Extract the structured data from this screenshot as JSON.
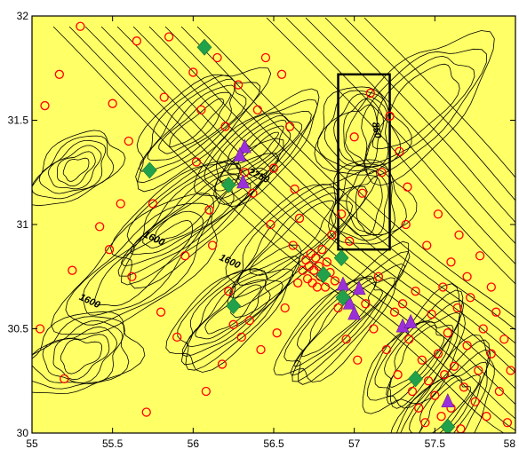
{
  "chart_data": {
    "type": "scatter",
    "xlim": [
      55.0,
      58.0
    ],
    "ylim": [
      30.0,
      32.0
    ],
    "x_ticks": [
      "55",
      "55.5",
      "56",
      "56.5",
      "57",
      "57.5",
      "58"
    ],
    "y_ticks": [
      "30",
      "30.5",
      "31",
      "31.5",
      "32"
    ],
    "contour_labels": [
      {
        "text": "1600",
        "x": 55.75,
        "y": 30.92
      },
      {
        "text": "1600",
        "x": 56.22,
        "y": 30.81
      },
      {
        "text": "1600",
        "x": 55.35,
        "y": 30.62
      },
      {
        "text": "2250",
        "x": 56.4,
        "y": 31.22
      },
      {
        "text": "850",
        "x": 57.12,
        "y": 31.45
      }
    ],
    "study_box": {
      "x0": 56.9,
      "x1": 57.22,
      "y0": 30.88,
      "y1": 31.72
    },
    "series": [
      {
        "marker": "diamond",
        "color": "#22a04a",
        "points": [
          [
            56.07,
            31.85
          ],
          [
            55.73,
            31.26
          ],
          [
            56.22,
            31.19
          ],
          [
            56.25,
            30.61
          ],
          [
            56.81,
            30.76
          ],
          [
            56.92,
            30.84
          ],
          [
            56.93,
            30.65
          ],
          [
            57.38,
            30.26
          ],
          [
            57.58,
            30.03
          ]
        ]
      },
      {
        "marker": "triangle",
        "color": "#9b30d9",
        "points": [
          [
            56.32,
            31.37
          ],
          [
            56.29,
            31.33
          ],
          [
            56.31,
            31.2
          ],
          [
            56.93,
            30.71
          ],
          [
            57.03,
            30.69
          ],
          [
            56.97,
            30.62
          ],
          [
            57.0,
            30.57
          ],
          [
            57.3,
            30.51
          ],
          [
            57.35,
            30.53
          ],
          [
            57.58,
            30.15
          ]
        ]
      },
      {
        "marker": "circle",
        "color": "#ff0000",
        "points": [
          [
            55.05,
            30.5
          ],
          [
            55.08,
            31.57
          ],
          [
            55.17,
            31.72
          ],
          [
            55.2,
            30.26
          ],
          [
            55.25,
            30.78
          ],
          [
            55.3,
            31.95
          ],
          [
            55.42,
            30.99
          ],
          [
            55.48,
            30.88
          ],
          [
            55.5,
            31.58
          ],
          [
            55.55,
            31.1
          ],
          [
            55.6,
            31.4
          ],
          [
            55.62,
            30.75
          ],
          [
            55.65,
            31.88
          ],
          [
            55.71,
            30.1
          ],
          [
            55.75,
            31.1
          ],
          [
            55.8,
            30.58
          ],
          [
            55.82,
            31.61
          ],
          [
            55.85,
            31.9
          ],
          [
            55.9,
            30.46
          ],
          [
            55.95,
            30.85
          ],
          [
            56.0,
            31.73
          ],
          [
            56.02,
            31.3
          ],
          [
            56.05,
            31.55
          ],
          [
            56.08,
            30.2
          ],
          [
            56.1,
            31.07
          ],
          [
            56.12,
            30.9
          ],
          [
            56.15,
            31.8
          ],
          [
            56.18,
            30.33
          ],
          [
            56.2,
            31.47
          ],
          [
            56.22,
            30.68
          ],
          [
            56.25,
            30.52
          ],
          [
            56.28,
            31.67
          ],
          [
            56.3,
            30.46
          ],
          [
            56.32,
            31.25
          ],
          [
            56.35,
            30.54
          ],
          [
            56.37,
            31.15
          ],
          [
            56.4,
            31.55
          ],
          [
            56.42,
            30.4
          ],
          [
            56.45,
            31.8
          ],
          [
            56.48,
            31.0
          ],
          [
            56.5,
            31.27
          ],
          [
            56.52,
            30.48
          ],
          [
            56.55,
            31.72
          ],
          [
            56.57,
            30.6
          ],
          [
            56.6,
            31.47
          ],
          [
            56.62,
            30.9
          ],
          [
            56.63,
            31.17
          ],
          [
            56.65,
            30.72
          ],
          [
            56.66,
            31.03
          ],
          [
            56.68,
            30.78
          ],
          [
            56.7,
            30.83
          ],
          [
            56.71,
            30.74
          ],
          [
            56.72,
            30.8
          ],
          [
            56.73,
            30.86
          ],
          [
            56.74,
            30.72
          ],
          [
            56.75,
            30.78
          ],
          [
            56.76,
            30.84
          ],
          [
            56.77,
            30.7
          ],
          [
            56.78,
            30.8
          ],
          [
            56.79,
            30.75
          ],
          [
            56.8,
            30.88
          ],
          [
            56.82,
            30.7
          ],
          [
            56.83,
            30.82
          ],
          [
            56.85,
            30.77
          ],
          [
            56.86,
            30.95
          ],
          [
            56.88,
            30.73
          ],
          [
            56.9,
            30.6
          ],
          [
            56.92,
            31.05
          ],
          [
            56.95,
            30.45
          ],
          [
            56.97,
            30.92
          ],
          [
            57.0,
            31.42
          ],
          [
            57.02,
            30.35
          ],
          [
            57.05,
            31.15
          ],
          [
            57.07,
            30.62
          ],
          [
            57.1,
            31.63
          ],
          [
            57.12,
            30.5
          ],
          [
            57.15,
            30.75
          ],
          [
            57.17,
            31.25
          ],
          [
            57.2,
            30.4
          ],
          [
            57.22,
            31.52
          ],
          [
            57.25,
            30.58
          ],
          [
            57.27,
            30.28
          ],
          [
            57.3,
            30.62
          ],
          [
            57.32,
            31.0
          ],
          [
            57.34,
            30.45
          ],
          [
            57.36,
            30.2
          ],
          [
            57.38,
            30.68
          ],
          [
            57.4,
            30.12
          ],
          [
            57.42,
            30.35
          ],
          [
            57.44,
            30.05
          ],
          [
            57.46,
            30.25
          ],
          [
            57.48,
            30.57
          ],
          [
            57.5,
            30.18
          ],
          [
            57.52,
            30.38
          ],
          [
            57.54,
            30.08
          ],
          [
            57.56,
            30.28
          ],
          [
            57.58,
            30.48
          ],
          [
            57.6,
            30.12
          ],
          [
            57.62,
            30.32
          ],
          [
            57.64,
            30.6
          ],
          [
            57.66,
            30.02
          ],
          [
            57.68,
            30.22
          ],
          [
            57.7,
            30.42
          ],
          [
            57.72,
            30.65
          ],
          [
            57.75,
            30.15
          ],
          [
            57.77,
            30.3
          ],
          [
            57.8,
            30.5
          ],
          [
            57.82,
            30.08
          ],
          [
            57.85,
            30.38
          ],
          [
            57.88,
            30.58
          ],
          [
            57.9,
            30.2
          ],
          [
            57.93,
            30.45
          ],
          [
            57.95,
            30.05
          ],
          [
            57.97,
            30.3
          ],
          [
            57.6,
            30.82
          ],
          [
            57.65,
            30.95
          ],
          [
            57.52,
            31.05
          ],
          [
            57.45,
            30.9
          ],
          [
            57.7,
            30.75
          ],
          [
            57.33,
            31.18
          ],
          [
            57.28,
            31.35
          ],
          [
            57.55,
            30.7
          ],
          [
            57.78,
            30.85
          ],
          [
            57.85,
            30.7
          ]
        ]
      }
    ]
  }
}
